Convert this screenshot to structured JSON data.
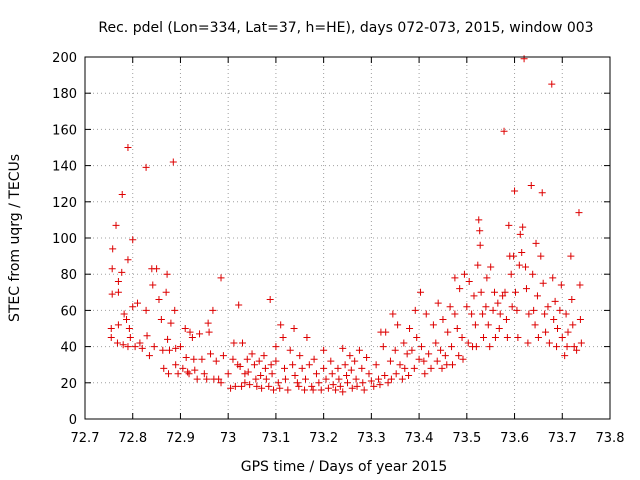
{
  "chart_data": {
    "type": "scatter",
    "title": "Rec. pdel (Lon=334, Lat=37, h=HE), days 072-073, 2015, window 003",
    "xlabel": "GPS time / Days of year 2015",
    "ylabel": "STEC from uqrg / TECUs",
    "xlim": [
      72.7,
      73.8
    ],
    "ylim": [
      0,
      200
    ],
    "x_ticks": [
      "72.7",
      "72.8",
      "72.9",
      "73",
      "73.1",
      "73.2",
      "73.3",
      "73.4",
      "73.5",
      "73.6",
      "73.7",
      "73.8"
    ],
    "y_ticks": [
      "0",
      "20",
      "40",
      "60",
      "80",
      "100",
      "120",
      "140",
      "160",
      "180",
      "200"
    ],
    "grid": true,
    "marker": "plus",
    "color": "#dd0000",
    "series": [
      {
        "points": [
          [
            72.755,
            50
          ],
          [
            72.755,
            45
          ],
          [
            72.757,
            69
          ],
          [
            72.757,
            83
          ],
          [
            72.758,
            94
          ],
          [
            72.765,
            107
          ],
          [
            72.768,
            42
          ],
          [
            72.77,
            70
          ],
          [
            72.77,
            76
          ],
          [
            72.77,
            52
          ],
          [
            72.778,
            124
          ],
          [
            72.777,
            81
          ],
          [
            72.78,
            41
          ],
          [
            72.782,
            58
          ],
          [
            72.787,
            55
          ],
          [
            72.79,
            150
          ],
          [
            72.79,
            40
          ],
          [
            72.79,
            88
          ],
          [
            72.793,
            50
          ],
          [
            72.795,
            45
          ],
          [
            72.8,
            99
          ],
          [
            72.8,
            62
          ],
          [
            72.805,
            40
          ],
          [
            72.81,
            64
          ],
          [
            72.815,
            42
          ],
          [
            72.82,
            39
          ],
          [
            72.828,
            139
          ],
          [
            72.828,
            60
          ],
          [
            72.83,
            46
          ],
          [
            72.835,
            35
          ],
          [
            72.84,
            83
          ],
          [
            72.842,
            74
          ],
          [
            72.845,
            40
          ],
          [
            72.85,
            83
          ],
          [
            72.855,
            66
          ],
          [
            72.86,
            55
          ],
          [
            72.863,
            38
          ],
          [
            72.865,
            28
          ],
          [
            72.87,
            70
          ],
          [
            72.872,
            80
          ],
          [
            72.873,
            44
          ],
          [
            72.875,
            25
          ],
          [
            72.877,
            38
          ],
          [
            72.88,
            53
          ],
          [
            72.885,
            142
          ],
          [
            72.888,
            60
          ],
          [
            72.89,
            39
          ],
          [
            72.89,
            30
          ],
          [
            72.895,
            25
          ],
          [
            72.9,
            40
          ],
          [
            72.905,
            28
          ],
          [
            72.91,
            50
          ],
          [
            72.912,
            34
          ],
          [
            72.915,
            26
          ],
          [
            72.918,
            25
          ],
          [
            72.92,
            48
          ],
          [
            72.925,
            45
          ],
          [
            72.928,
            33
          ],
          [
            72.93,
            27
          ],
          [
            72.935,
            22
          ],
          [
            72.94,
            47
          ],
          [
            72.945,
            33
          ],
          [
            72.95,
            25
          ],
          [
            72.955,
            22
          ],
          [
            72.958,
            53
          ],
          [
            72.96,
            48
          ],
          [
            72.963,
            36
          ],
          [
            72.968,
            60
          ],
          [
            72.97,
            22
          ],
          [
            72.975,
            32
          ],
          [
            72.98,
            22
          ],
          [
            72.985,
            78
          ],
          [
            72.985,
            20
          ],
          [
            72.99,
            35
          ],
          [
            73.0,
            25
          ],
          [
            73.005,
            17
          ],
          [
            73.01,
            33
          ],
          [
            73.012,
            42
          ],
          [
            73.015,
            18
          ],
          [
            73.02,
            30
          ],
          [
            73.022,
            63
          ],
          [
            73.025,
            29
          ],
          [
            73.028,
            18
          ],
          [
            73.03,
            42
          ],
          [
            73.035,
            25
          ],
          [
            73.035,
            20
          ],
          [
            73.04,
            33
          ],
          [
            73.042,
            26
          ],
          [
            73.045,
            19
          ],
          [
            73.05,
            36
          ],
          [
            73.055,
            30
          ],
          [
            73.058,
            22
          ],
          [
            73.06,
            18
          ],
          [
            73.065,
            32
          ],
          [
            73.068,
            24
          ],
          [
            73.07,
            17
          ],
          [
            73.075,
            35
          ],
          [
            73.078,
            28
          ],
          [
            73.08,
            22
          ],
          [
            73.085,
            18
          ],
          [
            73.088,
            66
          ],
          [
            73.09,
            30
          ],
          [
            73.092,
            25
          ],
          [
            73.095,
            16
          ],
          [
            73.1,
            40
          ],
          [
            73.1,
            32
          ],
          [
            73.105,
            20
          ],
          [
            73.108,
            17
          ],
          [
            73.11,
            52
          ],
          [
            73.115,
            45
          ],
          [
            73.118,
            28
          ],
          [
            73.12,
            22
          ],
          [
            73.125,
            16
          ],
          [
            73.13,
            38
          ],
          [
            73.135,
            30
          ],
          [
            73.138,
            50
          ],
          [
            73.14,
            24
          ],
          [
            73.145,
            20
          ],
          [
            73.148,
            18
          ],
          [
            73.15,
            35
          ],
          [
            73.155,
            28
          ],
          [
            73.16,
            16
          ],
          [
            73.162,
            22
          ],
          [
            73.165,
            45
          ],
          [
            73.17,
            30
          ],
          [
            73.175,
            18
          ],
          [
            73.178,
            16
          ],
          [
            73.18,
            33
          ],
          [
            73.185,
            25
          ],
          [
            73.19,
            20
          ],
          [
            73.195,
            16
          ],
          [
            73.2,
            38
          ],
          [
            73.2,
            28
          ],
          [
            73.205,
            22
          ],
          [
            73.21,
            17
          ],
          [
            73.215,
            32
          ],
          [
            73.218,
            25
          ],
          [
            73.22,
            19
          ],
          [
            73.225,
            16
          ],
          [
            73.23,
            28
          ],
          [
            73.232,
            22
          ],
          [
            73.235,
            18
          ],
          [
            73.24,
            39
          ],
          [
            73.24,
            15
          ],
          [
            73.245,
            30
          ],
          [
            73.248,
            24
          ],
          [
            73.25,
            20
          ],
          [
            73.255,
            35
          ],
          [
            73.258,
            27
          ],
          [
            73.26,
            17
          ],
          [
            73.265,
            32
          ],
          [
            73.268,
            22
          ],
          [
            73.27,
            18
          ],
          [
            73.275,
            38
          ],
          [
            73.28,
            28
          ],
          [
            73.282,
            20
          ],
          [
            73.285,
            16
          ],
          [
            73.29,
            34
          ],
          [
            73.295,
            25
          ],
          [
            73.3,
            21
          ],
          [
            73.305,
            18
          ],
          [
            73.31,
            30
          ],
          [
            73.315,
            22
          ],
          [
            73.318,
            19
          ],
          [
            73.32,
            48
          ],
          [
            73.325,
            40
          ],
          [
            73.328,
            24
          ],
          [
            73.33,
            48
          ],
          [
            73.335,
            20
          ],
          [
            73.34,
            32
          ],
          [
            73.342,
            22
          ],
          [
            73.345,
            58
          ],
          [
            73.35,
            38
          ],
          [
            73.352,
            25
          ],
          [
            73.355,
            52
          ],
          [
            73.36,
            30
          ],
          [
            73.365,
            22
          ],
          [
            73.368,
            42
          ],
          [
            73.37,
            28
          ],
          [
            73.375,
            36
          ],
          [
            73.378,
            24
          ],
          [
            73.38,
            50
          ],
          [
            73.385,
            38
          ],
          [
            73.39,
            28
          ],
          [
            73.392,
            60
          ],
          [
            73.395,
            45
          ],
          [
            73.4,
            33
          ],
          [
            73.403,
            70
          ],
          [
            73.405,
            40
          ],
          [
            73.41,
            32
          ],
          [
            73.412,
            25
          ],
          [
            73.415,
            58
          ],
          [
            73.42,
            36
          ],
          [
            73.425,
            28
          ],
          [
            73.43,
            52
          ],
          [
            73.435,
            42
          ],
          [
            73.438,
            32
          ],
          [
            73.44,
            64
          ],
          [
            73.445,
            38
          ],
          [
            73.448,
            28
          ],
          [
            73.45,
            55
          ],
          [
            73.455,
            35
          ],
          [
            73.458,
            30
          ],
          [
            73.46,
            48
          ],
          [
            73.465,
            62
          ],
          [
            73.468,
            40
          ],
          [
            73.47,
            30
          ],
          [
            73.475,
            78
          ],
          [
            73.475,
            58
          ],
          [
            73.48,
            50
          ],
          [
            73.483,
            35
          ],
          [
            73.485,
            72
          ],
          [
            73.49,
            45
          ],
          [
            73.492,
            33
          ],
          [
            73.495,
            80
          ],
          [
            73.5,
            62
          ],
          [
            73.503,
            42
          ],
          [
            73.505,
            76
          ],
          [
            73.51,
            58
          ],
          [
            73.512,
            40
          ],
          [
            73.515,
            68
          ],
          [
            73.518,
            52
          ],
          [
            73.52,
            40
          ],
          [
            73.523,
            85
          ],
          [
            73.525,
            110
          ],
          [
            73.527,
            104
          ],
          [
            73.528,
            96
          ],
          [
            73.53,
            70
          ],
          [
            73.533,
            58
          ],
          [
            73.535,
            45
          ],
          [
            73.54,
            62
          ],
          [
            73.542,
            78
          ],
          [
            73.545,
            52
          ],
          [
            73.548,
            40
          ],
          [
            73.55,
            84
          ],
          [
            73.555,
            60
          ],
          [
            73.558,
            70
          ],
          [
            73.56,
            45
          ],
          [
            73.565,
            64
          ],
          [
            73.568,
            50
          ],
          [
            73.57,
            58
          ],
          [
            73.575,
            68
          ],
          [
            73.578,
            159
          ],
          [
            73.58,
            70
          ],
          [
            73.583,
            55
          ],
          [
            73.585,
            45
          ],
          [
            73.588,
            107
          ],
          [
            73.59,
            90
          ],
          [
            73.593,
            80
          ],
          [
            73.595,
            62
          ],
          [
            73.598,
            90
          ],
          [
            73.6,
            126
          ],
          [
            73.602,
            70
          ],
          [
            73.605,
            60
          ],
          [
            73.607,
            45
          ],
          [
            73.61,
            85
          ],
          [
            73.612,
            102
          ],
          [
            73.615,
            92
          ],
          [
            73.617,
            106
          ],
          [
            73.62,
            199
          ],
          [
            73.623,
            84
          ],
          [
            73.625,
            72
          ],
          [
            73.628,
            42
          ],
          [
            73.63,
            58
          ],
          [
            73.635,
            129
          ],
          [
            73.638,
            80
          ],
          [
            73.64,
            60
          ],
          [
            73.643,
            52
          ],
          [
            73.645,
            97
          ],
          [
            73.648,
            68
          ],
          [
            73.65,
            45
          ],
          [
            73.655,
            90
          ],
          [
            73.658,
            125
          ],
          [
            73.66,
            75
          ],
          [
            73.663,
            58
          ],
          [
            73.665,
            48
          ],
          [
            73.67,
            62
          ],
          [
            73.673,
            42
          ],
          [
            73.678,
            185
          ],
          [
            73.68,
            78
          ],
          [
            73.682,
            55
          ],
          [
            73.685,
            65
          ],
          [
            73.688,
            40
          ],
          [
            73.69,
            50
          ],
          [
            73.695,
            60
          ],
          [
            73.698,
            74
          ],
          [
            73.7,
            45
          ],
          [
            73.705,
            35
          ],
          [
            73.708,
            58
          ],
          [
            73.71,
            40
          ],
          [
            73.712,
            48
          ],
          [
            73.718,
            90
          ],
          [
            73.72,
            66
          ],
          [
            73.722,
            52
          ],
          [
            73.725,
            40
          ],
          [
            73.73,
            38
          ],
          [
            73.735,
            114
          ],
          [
            73.737,
            74
          ],
          [
            73.738,
            55
          ],
          [
            73.74,
            42
          ]
        ]
      }
    ]
  }
}
